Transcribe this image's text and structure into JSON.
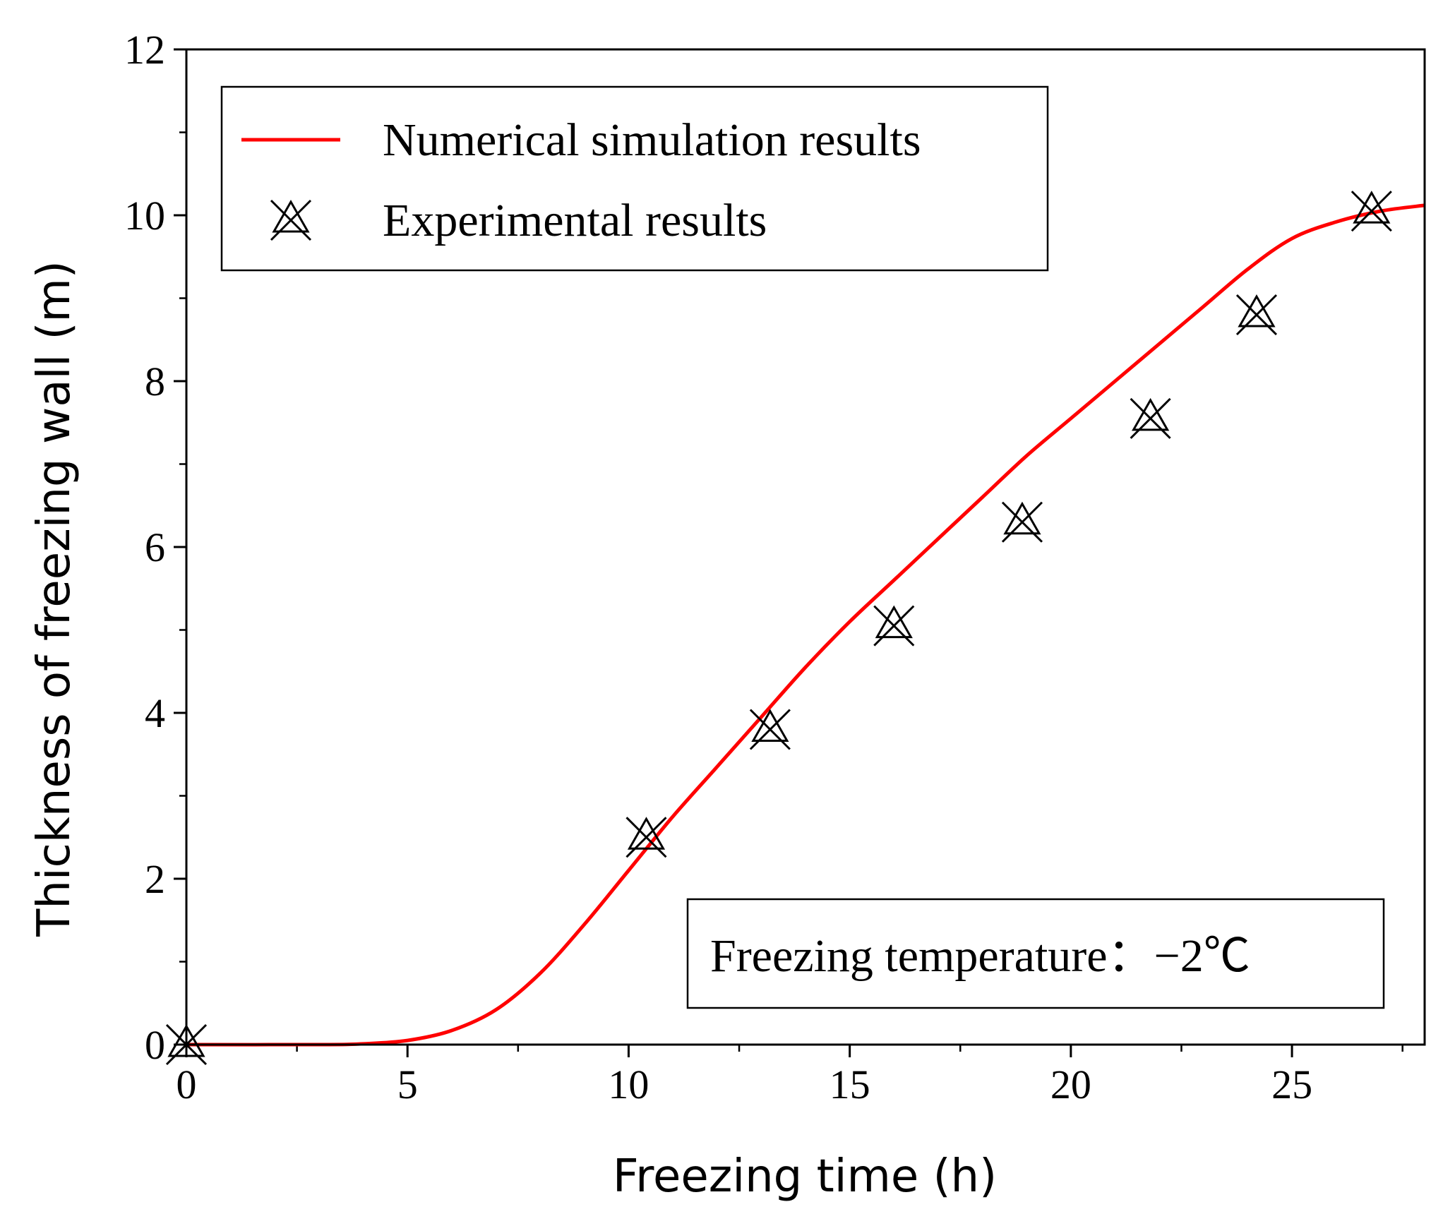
{
  "chart_data": {
    "type": "line",
    "title": "",
    "xlabel": "Freezing time (h)",
    "ylabel": "Thickness of freezing wall (m)",
    "xlim": [
      0,
      28
    ],
    "ylim": [
      0,
      12
    ],
    "x_ticks": [
      0,
      5,
      10,
      15,
      20,
      25
    ],
    "y_ticks": [
      0,
      2,
      4,
      6,
      8,
      10,
      12
    ],
    "x_tick_labels": [
      "0",
      "5",
      "10",
      "15",
      "20",
      "25"
    ],
    "y_tick_labels": [
      "0",
      "2",
      "4",
      "6",
      "8",
      "10",
      "12"
    ],
    "grid": false,
    "legend_position": "top-left",
    "colors": {
      "simulation": "#ff0000",
      "experimental": "#000000"
    },
    "series": [
      {
        "name": "Numerical simulation results",
        "style": "line",
        "x": [
          0,
          3,
          4,
          5,
          6,
          7,
          8,
          9,
          10,
          11,
          12,
          13,
          14,
          15,
          16,
          17,
          18,
          19,
          20,
          21,
          22,
          23,
          24,
          25,
          26,
          27,
          28
        ],
        "y": [
          0,
          0,
          0.01,
          0.05,
          0.17,
          0.42,
          0.86,
          1.45,
          2.1,
          2.75,
          3.35,
          3.95,
          4.55,
          5.1,
          5.6,
          6.1,
          6.6,
          7.1,
          7.55,
          8.0,
          8.45,
          8.9,
          9.35,
          9.72,
          9.92,
          10.05,
          10.12
        ]
      },
      {
        "name": "Experimental results",
        "style": "markers",
        "marker": "x-triangle",
        "x": [
          0,
          10.4,
          13.2,
          16.0,
          18.9,
          21.8,
          24.2,
          26.8
        ],
        "y": [
          0,
          2.5,
          3.8,
          5.05,
          6.3,
          7.55,
          8.8,
          10.05
        ]
      }
    ],
    "annotation": "Freezing temperature：−2℃"
  }
}
